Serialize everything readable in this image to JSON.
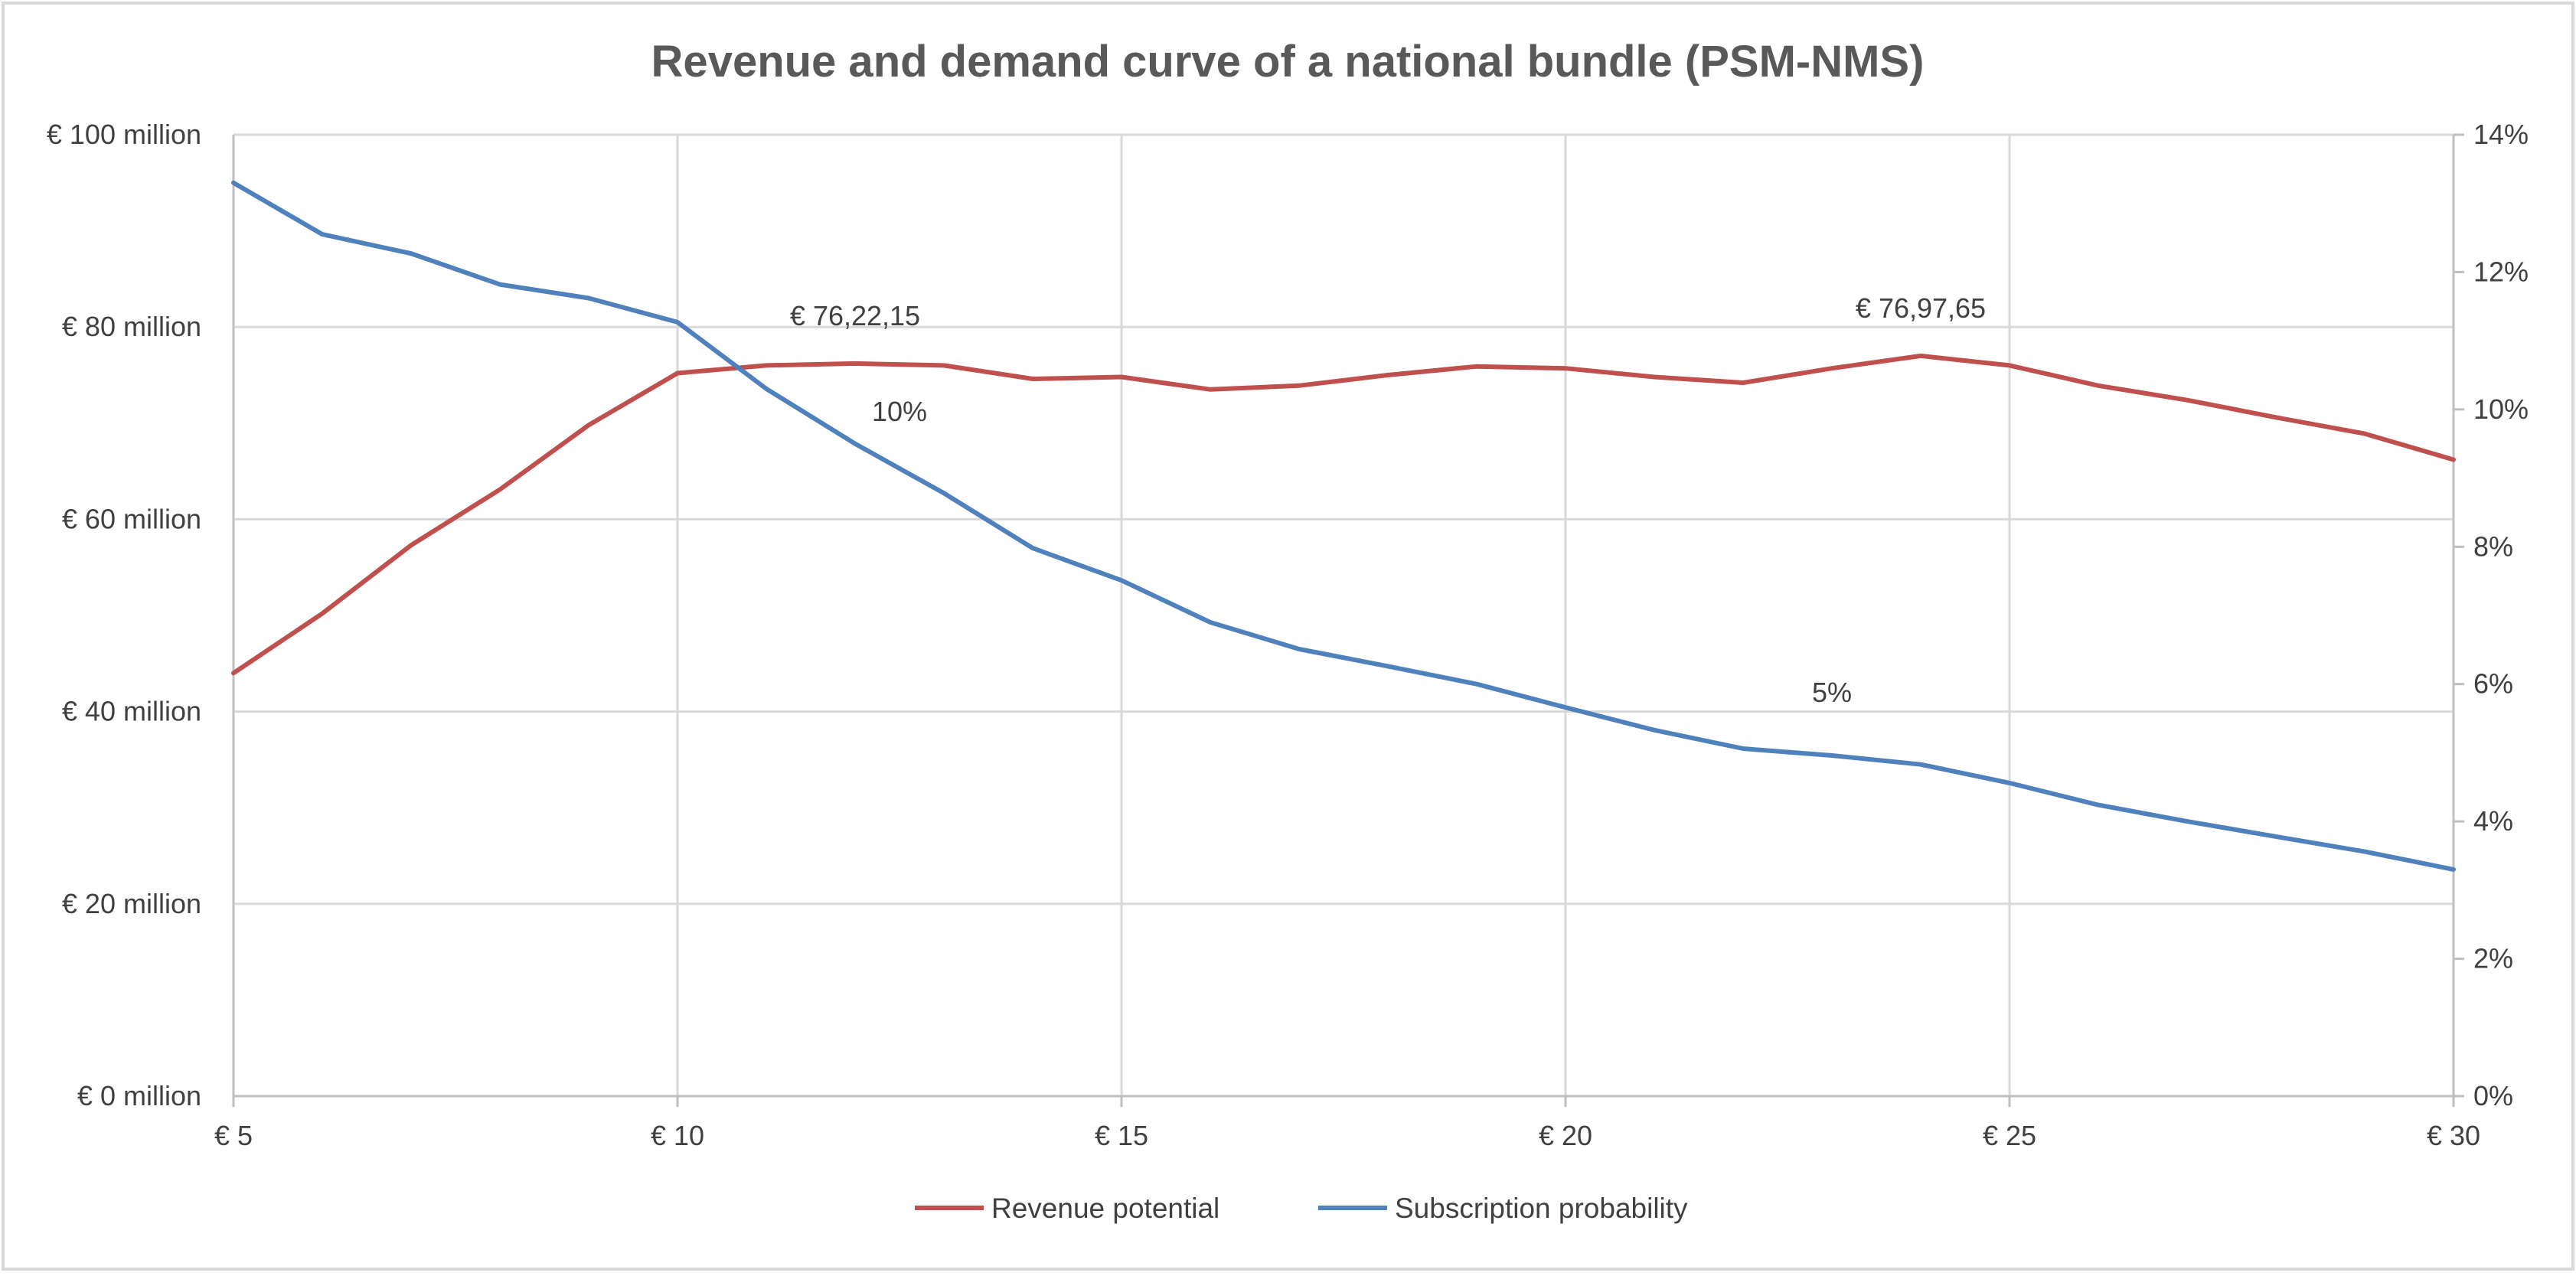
{
  "chart_data": {
    "type": "line",
    "title": "Revenue and demand curve of a national bundle (PSM-NMS)",
    "xlabel": "",
    "ylabel": "",
    "x": [
      5,
      6,
      7,
      8,
      9,
      10,
      11,
      12,
      13,
      14,
      15,
      16,
      17,
      18,
      19,
      20,
      21,
      22,
      23,
      24,
      25,
      26,
      27,
      28,
      29,
      30
    ],
    "x_ticks": [
      5,
      10,
      15,
      20,
      25,
      30
    ],
    "x_tick_labels": [
      "€ 5",
      "€ 10",
      "€ 15",
      "€ 20",
      "€ 25",
      "€ 30"
    ],
    "ylim_left": [
      0,
      100
    ],
    "y_left_ticks": [
      0,
      20,
      40,
      60,
      80,
      100
    ],
    "y_left_tick_labels": [
      "€ 0 million",
      "€ 20 million",
      "€ 40 million",
      "€ 60 million",
      "€ 80 million",
      "€ 100 million"
    ],
    "ylim_right": [
      0,
      14
    ],
    "y_right_ticks": [
      0,
      2,
      4,
      6,
      8,
      10,
      12,
      14
    ],
    "y_right_tick_labels": [
      "0%",
      "2%",
      "4%",
      "6%",
      "8%",
      "10%",
      "12%",
      "14%"
    ],
    "grid": true,
    "legend_position": "bottom",
    "series": [
      {
        "name": "Revenue potential",
        "axis": "left",
        "color": "#c0504d",
        "values": [
          44,
          50.2,
          57.3,
          63.1,
          69.8,
          75.2,
          76.0,
          76.2,
          76.0,
          74.6,
          74.8,
          73.5,
          73.9,
          75.0,
          75.9,
          75.7,
          74.8,
          74.2,
          75.7,
          77.0,
          76.0,
          73.9,
          72.4,
          70.6,
          68.9,
          66.2
        ]
      },
      {
        "name": "Subscription probability",
        "axis": "right",
        "color": "#4f81bd",
        "values": [
          13.3,
          12.55,
          12.27,
          11.82,
          11.62,
          11.27,
          10.3,
          9.5,
          8.78,
          7.98,
          7.51,
          6.9,
          6.51,
          6.26,
          6.0,
          5.66,
          5.33,
          5.06,
          4.96,
          4.83,
          4.56,
          4.24,
          4.0,
          3.78,
          3.56,
          3.3
        ]
      }
    ],
    "annotations": [
      {
        "text": "€ 76,22,15",
        "series": 0,
        "x": 12
      },
      {
        "text": "€ 76,97,65",
        "series": 0,
        "x": 24
      },
      {
        "text": "10%",
        "series": 1,
        "x": 12.5
      },
      {
        "text": "5%",
        "series": 1,
        "x": 23
      }
    ]
  }
}
